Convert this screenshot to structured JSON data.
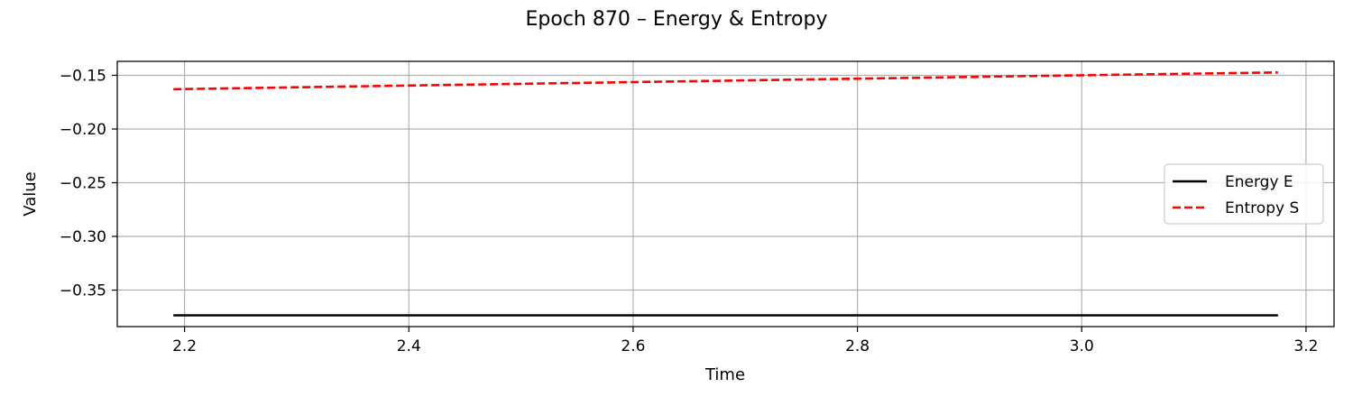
{
  "chart_data": {
    "type": "line",
    "title": "Epoch 870 – Energy & Entropy",
    "xlabel": "Time",
    "ylabel": "Value",
    "xlim": [
      2.14,
      3.225
    ],
    "ylim": [
      -0.384,
      -0.137
    ],
    "xticks": [
      2.2,
      2.4,
      2.6,
      2.8,
      3.0,
      3.2
    ],
    "xtick_labels": [
      "2.2",
      "2.4",
      "2.6",
      "2.8",
      "3.0",
      "3.2"
    ],
    "yticks": [
      -0.15,
      -0.2,
      -0.25,
      -0.3,
      -0.35
    ],
    "ytick_labels": [
      "−0.15",
      "−0.20",
      "−0.25",
      "−0.30",
      "−0.35"
    ],
    "grid": true,
    "legend_position": "center-right",
    "series": [
      {
        "name": "Energy E",
        "color": "#000000",
        "style": "solid",
        "x": [
          2.19,
          3.175
        ],
        "y": [
          -0.3735,
          -0.3735
        ]
      },
      {
        "name": "Entropy S",
        "color": "#ff0000",
        "style": "dashed",
        "x": [
          2.19,
          2.4,
          2.6,
          2.8,
          3.0,
          3.175
        ],
        "y": [
          -0.163,
          -0.1595,
          -0.1563,
          -0.1531,
          -0.1499,
          -0.1473
        ]
      }
    ]
  }
}
